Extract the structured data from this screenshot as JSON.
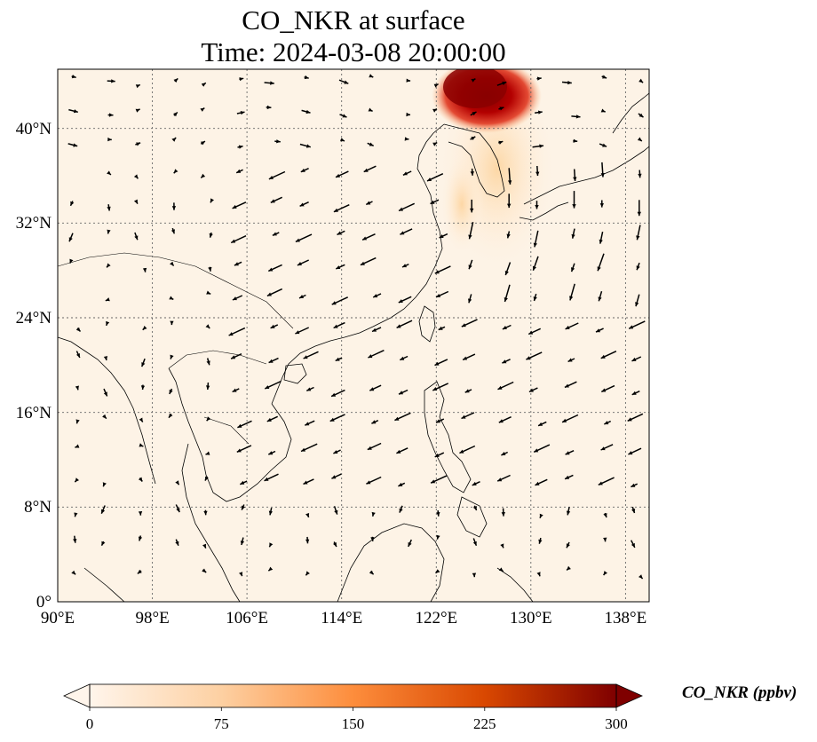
{
  "title": {
    "line1": "CO_NKR at surface",
    "line2": "Time: 2024-03-08 20:00:00"
  },
  "map": {
    "lon_range": [
      90,
      140
    ],
    "lat_range": [
      0,
      45
    ],
    "lon_ticks": [
      "90°E",
      "98°E",
      "106°E",
      "114°E",
      "122°E",
      "130°E",
      "138°E"
    ],
    "lat_ticks": [
      "0°",
      "8°N",
      "16°N",
      "24°N",
      "32°N",
      "40°N"
    ],
    "gridlines": "dotted",
    "field": "CO_NKR concentration with wind vectors",
    "plume": "high concentrations over Northeast China / North Korea, 300+ ppbv near 42–45°N, 124–130°E"
  },
  "colorbar": {
    "label": "CO_NKR (ppbv)",
    "ticks": [
      "0",
      "75",
      "150",
      "225",
      "300"
    ],
    "range": [
      0,
      300
    ],
    "extend": "both",
    "colors": [
      "#fff5eb",
      "#fdd0a2",
      "#fd8d3c",
      "#d94801",
      "#7f2704"
    ]
  }
}
